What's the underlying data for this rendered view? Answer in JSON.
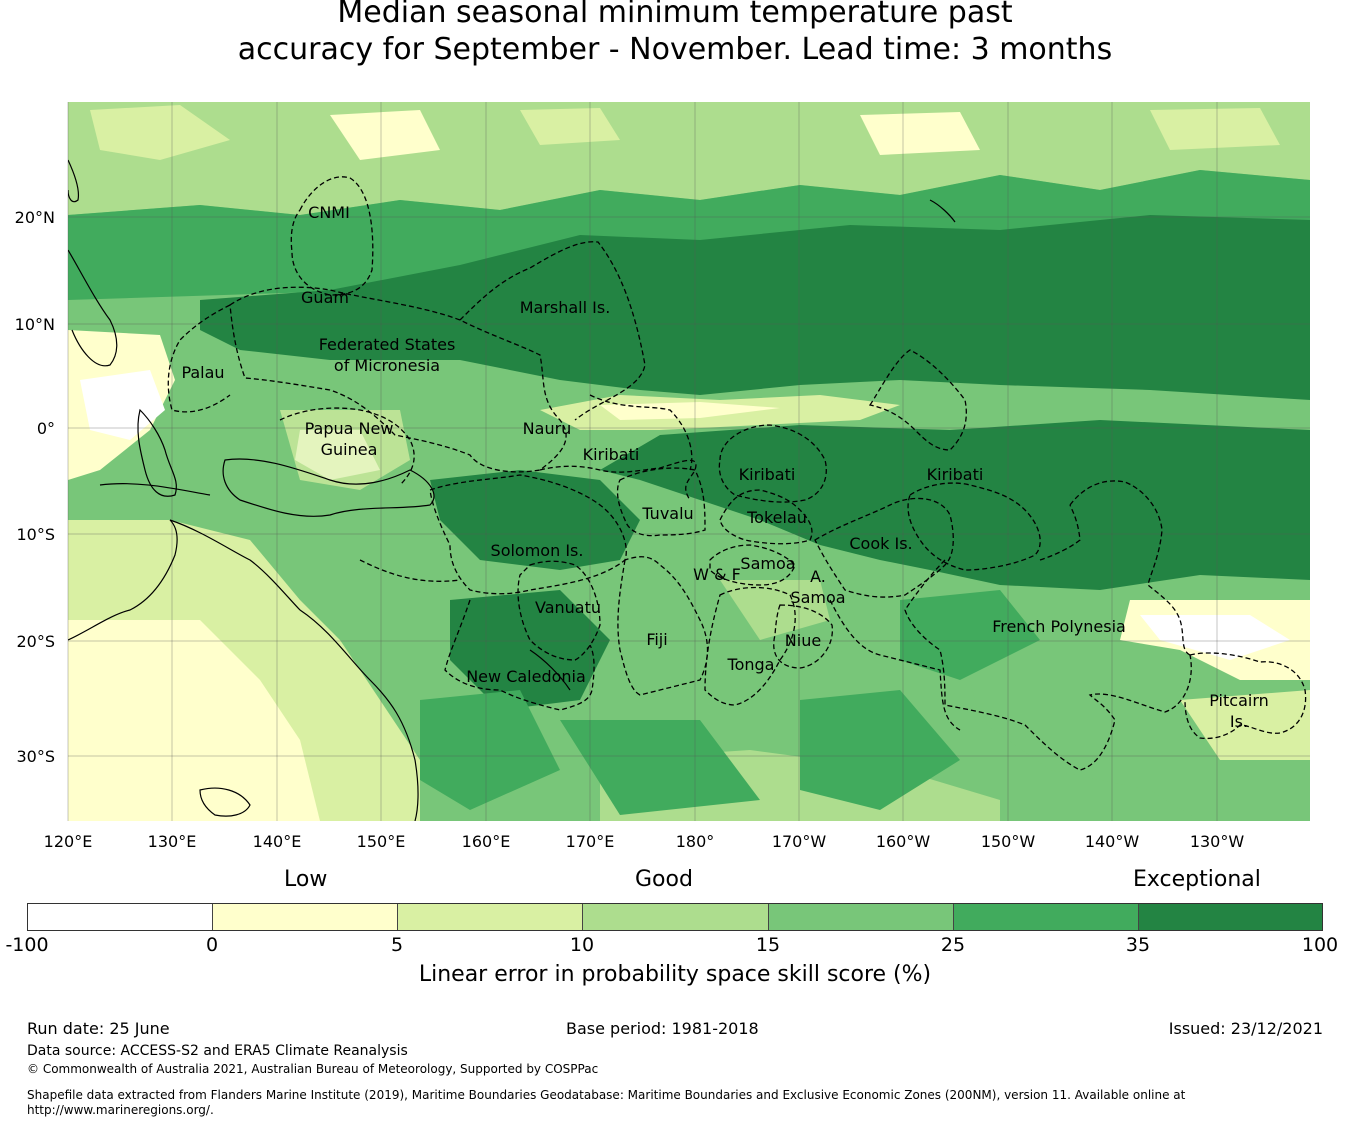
{
  "title_line1": "Median seasonal minimum temperature past",
  "title_line2": "accuracy for September - November. Lead time: 3 months",
  "lat_ticks": [
    "20°N",
    "10°N",
    "0°",
    "10°S",
    "20°S",
    "30°S"
  ],
  "lon_ticks": [
    "120°E",
    "130°E",
    "140°E",
    "150°E",
    "160°E",
    "170°E",
    "180°",
    "170°W",
    "160°W",
    "150°W",
    "140°W",
    "130°W"
  ],
  "regions": [
    "CNMI",
    "Guam",
    "Marshall Is.",
    "Federated States",
    "of Micronesia",
    "Palau",
    "Papua New",
    "Guinea",
    "Nauru",
    "Kiribati",
    "Kiribati",
    "Kiribati",
    "Tuvalu",
    "Tokelau",
    "Cook Is.",
    "Solomon Is.",
    "Samoa",
    "W & F",
    "A.",
    "Samoa",
    "Vanuatu",
    "Fiji",
    "Niue",
    "Tonga",
    "New Caledonia",
    "French Polynesia",
    "Pitcairn",
    "Is."
  ],
  "colorbar": {
    "category_labels": [
      "Low",
      "Good",
      "Exceptional"
    ],
    "ticks": [
      "-100",
      "0",
      "5",
      "10",
      "15",
      "25",
      "35",
      "100"
    ],
    "colors": [
      "#ffffff",
      "#ffffcc",
      "#d9f0a3",
      "#addd8e",
      "#78c679",
      "#41ab5d",
      "#238443"
    ],
    "label": "Linear error in probability space skill score (%)"
  },
  "footer": {
    "run_date": "Run date: 25 June",
    "base_period": "Base period: 1981-2018",
    "issued": "Issued: 23/12/2021",
    "data_source": "Data source: ACCESS-S2 and ERA5 Climate Reanalysis",
    "copyright": "© Commonwealth of Australia 2021, Australian Bureau of Meteorology, Supported by COSPPac",
    "shapefile_line1": "Shapefile data extracted from Flanders Marine Institute (2019), Maritime Boundaries Geodatabase: Maritime Boundaries and Exclusive Economic Zones (200NM), version 11. Available online at",
    "shapefile_line2": "http://www.marineregions.org/."
  }
}
